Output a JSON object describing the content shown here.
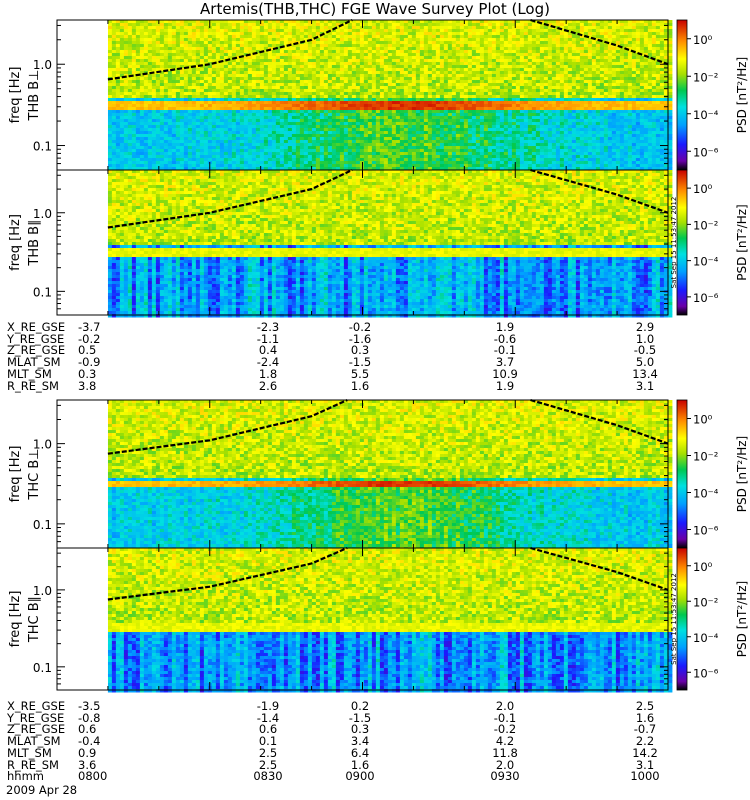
{
  "title": "Artemis(THB,THC) FGE Wave Survey Plot (Log)",
  "stamp": "Sat Sep 15 11:53:47 2012",
  "date_label": "2009 Apr 28",
  "colorbar": {
    "label": "PSD [nT²/Hz]",
    "ticks": [
      "10⁰",
      "10⁻²",
      "10⁻⁴",
      "10⁻⁶"
    ],
    "range_log10": [
      -7,
      1
    ]
  },
  "chart_data": [
    {
      "type": "heatmap",
      "panel": "THB B⊥",
      "ylabel": "freq [Hz]",
      "y_scale": "log",
      "yticks": [
        "1.0",
        "0.1"
      ],
      "ylim": [
        0.05,
        3.5
      ],
      "data_start": "08:10",
      "band_freq_hz": 0.33,
      "noise_floor_log10": -4,
      "curve_rising": [
        [
          "08:10",
          0.65
        ],
        [
          "08:30",
          1.0
        ],
        [
          "08:50",
          2.0
        ],
        [
          "08:58",
          3.5
        ]
      ],
      "curve_falling": [
        [
          "09:33",
          3.5
        ],
        [
          "09:50",
          1.7
        ],
        [
          "10:00",
          1.0
        ]
      ]
    },
    {
      "type": "heatmap",
      "panel": "THB B∥",
      "ylabel": "freq [Hz]",
      "y_scale": "log",
      "yticks": [
        "1.0",
        "0.1"
      ],
      "ylim": [
        0.05,
        3.5
      ],
      "data_start": "08:10",
      "band_freq_hz": 0.33,
      "noise_floor_log10": -4.5,
      "curve_rising": [
        [
          "08:10",
          0.65
        ],
        [
          "08:30",
          1.0
        ],
        [
          "08:50",
          2.0
        ],
        [
          "08:58",
          3.5
        ]
      ],
      "curve_falling": [
        [
          "09:33",
          3.5
        ],
        [
          "09:50",
          1.7
        ],
        [
          "10:00",
          1.0
        ]
      ]
    },
    {
      "type": "heatmap",
      "panel": "THC B⊥",
      "ylabel": "freq [Hz]",
      "y_scale": "log",
      "yticks": [
        "1.0",
        "0.1"
      ],
      "ylim": [
        0.05,
        3.5
      ],
      "data_start": "08:10",
      "band_freq_hz": 0.33,
      "noise_floor_log10": -4,
      "curve_rising": [
        [
          "08:10",
          0.75
        ],
        [
          "08:30",
          1.1
        ],
        [
          "08:50",
          2.2
        ],
        [
          "08:57",
          3.5
        ]
      ],
      "curve_falling": [
        [
          "09:33",
          3.5
        ],
        [
          "09:50",
          1.7
        ],
        [
          "10:00",
          1.0
        ]
      ]
    },
    {
      "type": "heatmap",
      "panel": "THC B∥",
      "ylabel": "freq [Hz]",
      "y_scale": "log",
      "yticks": [
        "1.0",
        "0.1"
      ],
      "ylim": [
        0.05,
        3.5
      ],
      "data_start": "08:10",
      "band_freq_hz": 0.33,
      "noise_floor_log10": -4.5,
      "curve_rising": [
        [
          "08:10",
          0.75
        ],
        [
          "08:30",
          1.1
        ],
        [
          "08:50",
          2.2
        ],
        [
          "08:57",
          3.5
        ]
      ],
      "curve_falling": [
        [
          "09:33",
          3.5
        ],
        [
          "09:50",
          1.7
        ],
        [
          "10:00",
          1.0
        ]
      ]
    }
  ],
  "ephemeris": [
    {
      "rows": [
        {
          "label": "X_RE_GSE",
          "values": [
            "-3.7",
            "-2.3",
            "-0.2",
            "1.9",
            "2.9"
          ]
        },
        {
          "label": "Y_RE_GSE",
          "values": [
            "-0.2",
            "-1.1",
            "-1.6",
            "-0.6",
            "1.0"
          ]
        },
        {
          "label": "Z_RE_GSE",
          "values": [
            "0.5",
            "0.4",
            "0.3",
            "-0.1",
            "-0.5"
          ]
        },
        {
          "label": "MLAT_SM",
          "values": [
            "-0.9",
            "-2.4",
            "-1.5",
            "3.7",
            "5.0"
          ]
        },
        {
          "label": "MLT_SM",
          "values": [
            "0.3",
            "1.8",
            "5.5",
            "10.9",
            "13.4"
          ]
        },
        {
          "label": "R_RE_SM",
          "values": [
            "3.8",
            "2.6",
            "1.6",
            "1.9",
            "3.1"
          ]
        }
      ]
    },
    {
      "rows": [
        {
          "label": "X_RE_GSE",
          "values": [
            "-3.5",
            "-1.9",
            "0.2",
            "2.0",
            "2.5"
          ]
        },
        {
          "label": "Y_RE_GSE",
          "values": [
            "-0.8",
            "-1.4",
            "-1.5",
            "-0.1",
            "1.6"
          ]
        },
        {
          "label": "Z_RE_GSE",
          "values": [
            "0.6",
            "0.6",
            "0.3",
            "-0.2",
            "-0.7"
          ]
        },
        {
          "label": "MLAT_SM",
          "values": [
            "-0.4",
            "0.1",
            "3.4",
            "4.2",
            "2.2"
          ]
        },
        {
          "label": "MLT_SM",
          "values": [
            "0.9",
            "2.5",
            "6.4",
            "11.8",
            "14.2"
          ]
        },
        {
          "label": "R_RE_SM",
          "values": [
            "3.6",
            "2.5",
            "1.6",
            "2.0",
            "3.1"
          ]
        },
        {
          "label": "hhmm",
          "values": [
            "0800",
            "0830",
            "0900",
            "0930",
            "1000"
          ]
        }
      ]
    }
  ]
}
